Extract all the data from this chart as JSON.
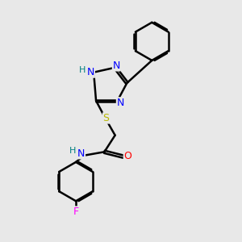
{
  "background_color": "#e8e8e8",
  "bond_color": "#000000",
  "atom_colors": {
    "N": "#0000ff",
    "O": "#ff0000",
    "S": "#b8b800",
    "F": "#ff00ff",
    "H": "#008080",
    "C": "#000000"
  },
  "bond_width": 1.8,
  "figsize": [
    3.0,
    3.0
  ],
  "dpi": 100,
  "xlim": [
    0,
    10
  ],
  "ylim": [
    0,
    10
  ]
}
